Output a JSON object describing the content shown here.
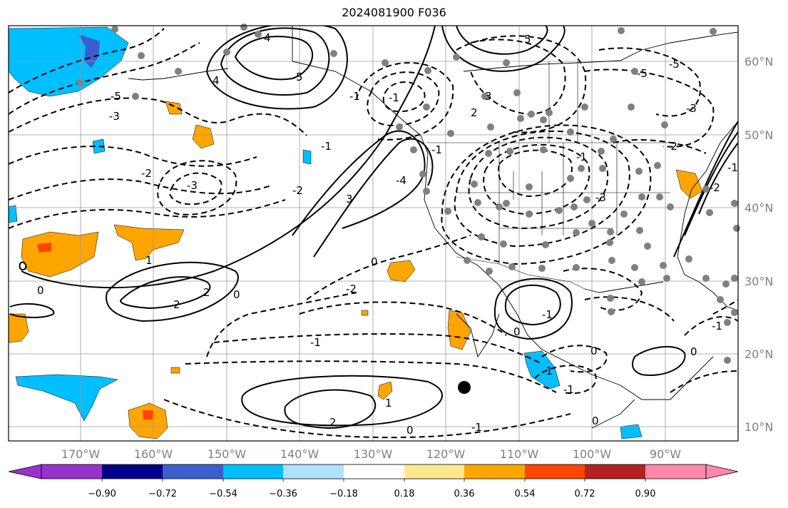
{
  "title": "2024081900 F036",
  "map": {
    "lat_labels": [
      "60°N",
      "50°N",
      "40°N",
      "30°N",
      "20°N",
      "10°N"
    ],
    "lon_labels": [
      "170°W",
      "160°W",
      "150°W",
      "140°W",
      "130°W",
      "120°W",
      "110°W",
      "100°W",
      "90°W"
    ],
    "contour_labels": [
      "4",
      "5",
      "5",
      "-5",
      "-5",
      "-5",
      "1",
      "-3",
      "-1",
      "-2",
      "-3",
      "-4",
      "2",
      "3",
      "-1",
      "-3",
      "-2",
      "-1",
      "3",
      "4",
      "-2",
      "-3",
      "-1",
      "-1",
      "-1",
      "1",
      "2",
      "2",
      "0",
      "0",
      "-2",
      "-1",
      "-1",
      "0",
      "-2",
      "0",
      "-1",
      "2",
      "-1",
      "0",
      "0",
      "-1",
      "0",
      "-1",
      "0"
    ],
    "colors": {
      "land_border": "#000000",
      "grid": "#9a9a9a",
      "label": "#808080"
    }
  },
  "colorbar": {
    "ticks": [
      "−0.90",
      "−0.72",
      "−0.54",
      "−0.36",
      "−0.18",
      "0.18",
      "0.36",
      "0.54",
      "0.72",
      "0.90"
    ],
    "colors": [
      "#9932cc",
      "#00008b",
      "#3a5fcd",
      "#00bfff",
      "#b0e2ff",
      "#ffffff",
      "#ffe98c",
      "#ffa500",
      "#ff4500",
      "#b22222",
      "#ff88aa"
    ]
  }
}
